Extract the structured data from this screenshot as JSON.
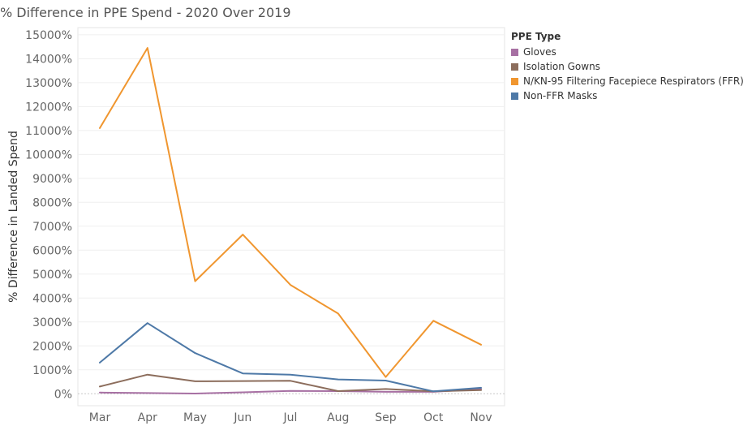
{
  "title": "% Difference in PPE Spend - 2020 Over 2019",
  "legend": {
    "title": "PPE Type",
    "items": [
      {
        "label": "Gloves",
        "color": "#a770a3"
      },
      {
        "label": "Isolation Gowns",
        "color": "#8c6d5c"
      },
      {
        "label": "N/KN-95 Filtering Facepiece Respirators (FFR)",
        "color": "#f0962f"
      },
      {
        "label": "Non-FFR Masks",
        "color": "#4e79a7"
      }
    ]
  },
  "chart_data": {
    "type": "line",
    "title": "% Difference in PPE Spend - 2020 Over 2019",
    "xlabel": "",
    "ylabel": "% Difference in Landed Spend",
    "categories": [
      "Mar",
      "Apr",
      "May",
      "Jun",
      "Jul",
      "Aug",
      "Sep",
      "Oct",
      "Nov"
    ],
    "ylim": [
      -500,
      15300
    ],
    "yticks": [
      0,
      1000,
      2000,
      3000,
      4000,
      5000,
      6000,
      7000,
      8000,
      9000,
      10000,
      11000,
      12000,
      13000,
      14000,
      15000
    ],
    "ytick_labels": [
      "0%",
      "1000%",
      "2000%",
      "3000%",
      "4000%",
      "5000%",
      "6000%",
      "7000%",
      "8000%",
      "9000%",
      "10000%",
      "11000%",
      "12000%",
      "13000%",
      "14000%",
      "15000%"
    ],
    "grid": true,
    "legend_position": "right",
    "series": [
      {
        "name": "Gloves",
        "color": "#a770a3",
        "values": [
          50,
          30,
          10,
          60,
          120,
          110,
          80,
          80,
          200
        ]
      },
      {
        "name": "Isolation Gowns",
        "color": "#8c6d5c",
        "values": [
          300,
          800,
          520,
          530,
          540,
          110,
          200,
          100,
          150
        ]
      },
      {
        "name": "N/KN-95 Filtering Facepiece Respirators (FFR)",
        "color": "#f0962f",
        "values": [
          11100,
          14450,
          4700,
          6650,
          4550,
          3350,
          700,
          3050,
          2050
        ]
      },
      {
        "name": "Non-FFR Masks",
        "color": "#4e79a7",
        "values": [
          1300,
          2950,
          1700,
          850,
          800,
          600,
          550,
          100,
          250
        ]
      }
    ]
  }
}
